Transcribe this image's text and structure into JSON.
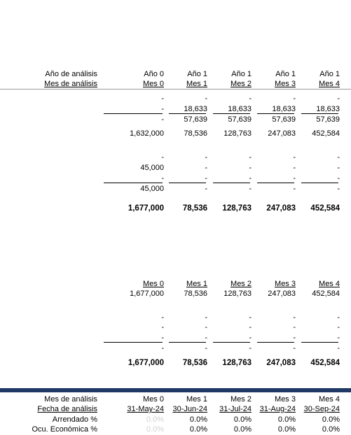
{
  "rows": [
    {
      "label": "Año de análisis",
      "cells": [
        "Año 0",
        "Año 1",
        "Año 1",
        "Año 1",
        "Año 1"
      ]
    },
    {
      "label": "Mes de análisis",
      "cells": [
        "Mes 0",
        "Mes 1",
        "Mes 2",
        "Mes 3",
        "Mes 4"
      ]
    },
    {
      "cells": [
        "-",
        "-",
        "-",
        "-",
        "-"
      ]
    },
    {
      "cells": [
        "-",
        "18,633",
        "18,633",
        "18,633",
        "18,633"
      ]
    },
    {
      "cells": [
        "-",
        "57,639",
        "57,639",
        "57,639",
        "57,639"
      ]
    },
    {
      "cells": [
        "1,632,000",
        "78,536",
        "128,763",
        "247,083",
        "452,584"
      ]
    },
    {
      "cells": [
        "-",
        "-",
        "-",
        "-",
        "-"
      ]
    },
    {
      "cells": [
        "45,000",
        "-",
        "-",
        "-",
        "-"
      ]
    },
    {
      "cells": [
        "-",
        "-",
        "-",
        "-",
        "-"
      ]
    },
    {
      "cells": [
        "45,000",
        "-",
        "-",
        "-",
        "-"
      ]
    },
    {
      "cells": [
        "1,677,000",
        "78,536",
        "128,763",
        "247,083",
        "452,584"
      ]
    },
    {
      "cells": [
        "Mes 0",
        "Mes 1",
        "Mes 2",
        "Mes 3",
        "Mes 4"
      ]
    },
    {
      "cells": [
        "1,677,000",
        "78,536",
        "128,763",
        "247,083",
        "452,584"
      ]
    },
    {
      "cells": [
        "-",
        "-",
        "-",
        "-",
        "-"
      ]
    },
    {
      "cells": [
        "-",
        "-",
        "-",
        "-",
        "-"
      ]
    },
    {
      "cells": [
        "-",
        "-",
        "-",
        "-",
        "-"
      ]
    },
    {
      "cells": [
        "-",
        "-",
        "-",
        "-",
        "-"
      ]
    },
    {
      "cells": [
        "1,677,000",
        "78,536",
        "128,763",
        "247,083",
        "452,584"
      ]
    },
    {
      "label": "Mes de análisis",
      "cells": [
        "Mes 0",
        "Mes 1",
        "Mes 2",
        "Mes 3",
        "Mes 4"
      ]
    },
    {
      "label": "Fecha de análisis",
      "cells": [
        "31-May-24",
        "30-Jun-24",
        "31-Jul-24",
        "31-Aug-24",
        "30-Sep-24"
      ]
    },
    {
      "label": "Arrendado %",
      "cells": [
        "0.0%",
        "0.0%",
        "0.0%",
        "0.0%",
        "0.0%"
      ]
    },
    {
      "label": "Ocu. Económica %",
      "cells": [
        "0.0%",
        "0.0%",
        "0.0%",
        "0.0%",
        "0.0%"
      ]
    }
  ]
}
